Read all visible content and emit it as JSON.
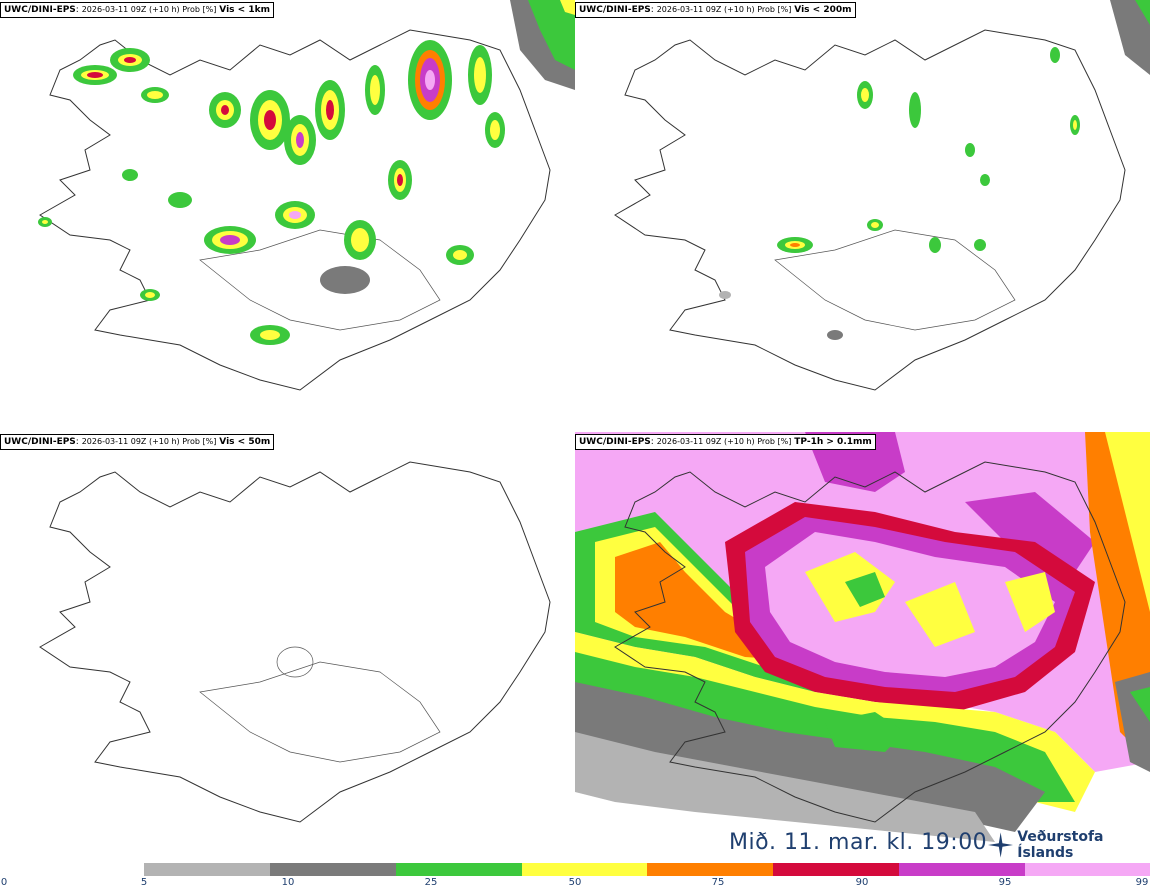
{
  "panels": [
    {
      "model": "UWC/DINI-EPS",
      "run": "2026-03-11 09Z (+10 h) Prob [%]",
      "variable": "Vis < 1km"
    },
    {
      "model": "UWC/DINI-EPS",
      "run": "2026-03-11 09Z (+10 h) Prob [%]",
      "variable": "Vis < 200m"
    },
    {
      "model": "UWC/DINI-EPS",
      "run": "2026-03-11 09Z (+10 h) Prob [%]",
      "variable": "Vis < 50m"
    },
    {
      "model": "UWC/DINI-EPS",
      "run": "2026-03-11 09Z (+10 h) Prob [%]",
      "variable": "TP-1h > 0.1mm"
    }
  ],
  "footer": {
    "valid_time": "Mið. 11. mar. kl. 19:00",
    "logo_text": "Veðurstofa Íslands"
  },
  "colorbar": {
    "ticks": [
      "0",
      "5",
      "10",
      "25",
      "50",
      "75",
      "90",
      "95",
      "99"
    ],
    "colors": [
      "#b3b3b3",
      "#7a7a7a",
      "#3cc83c",
      "#ffff40",
      "#ff7f00",
      "#d40a3c",
      "#c83cc8",
      "#f5a8f5"
    ]
  }
}
